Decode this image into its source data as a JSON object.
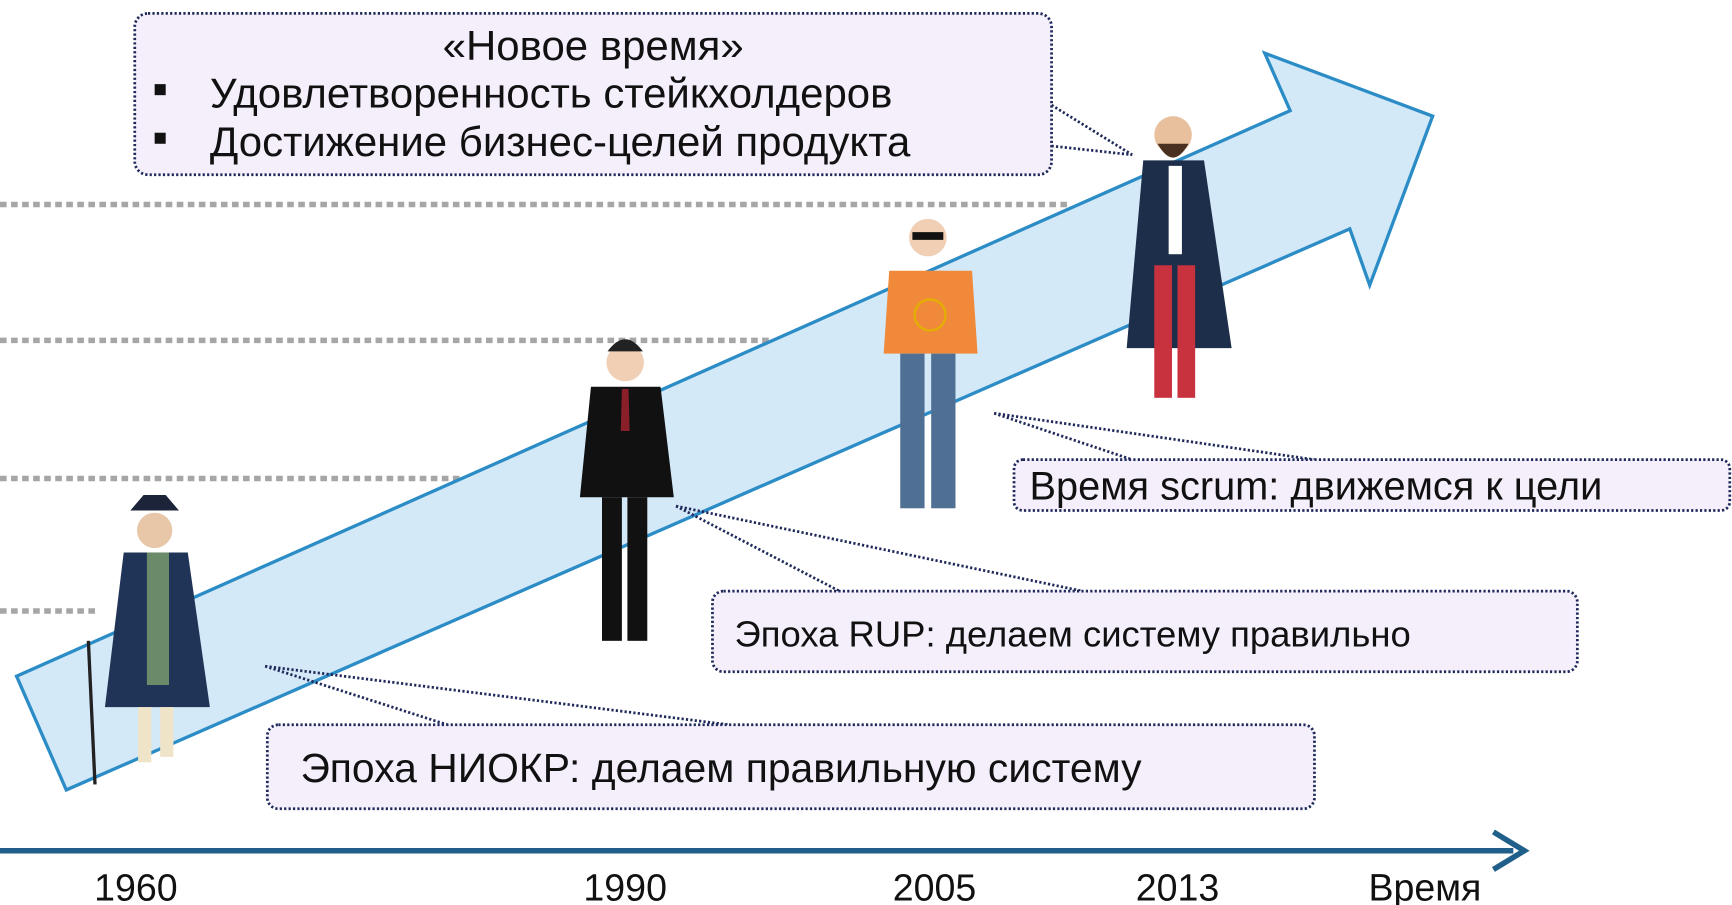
{
  "new_time": {
    "title": "«Новое время»",
    "bullets": [
      "Удовлетворенность стейкхолдеров",
      "Достижение бизнес-целей продукта"
    ]
  },
  "eras": [
    "Время scrum: движемся к цели",
    "Эпоха RUP: делаем систему правильно",
    "Эпоха НИОКР: делаем правильную систему"
  ],
  "axis": {
    "years": [
      "1960",
      "1990",
      "2005",
      "2013"
    ],
    "label": "Время"
  }
}
